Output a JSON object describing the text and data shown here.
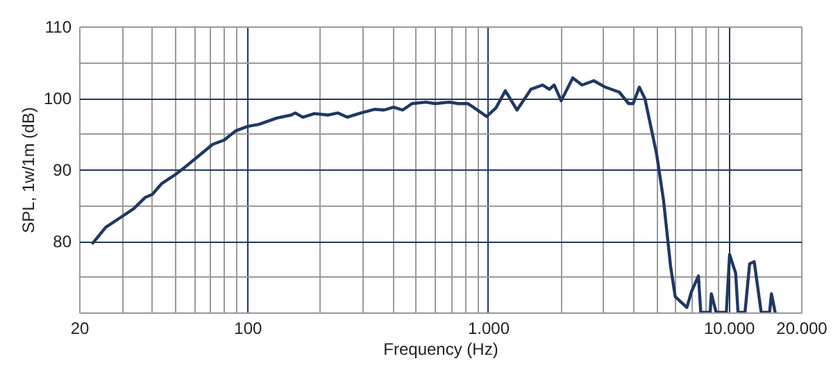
{
  "chart_data": {
    "type": "line",
    "xlabel": "Frequency (Hz)",
    "ylabel": "SPL, 1w/1m (dB)",
    "log": "x",
    "grid": true,
    "marker": "none",
    "line_style": "solid",
    "xlim": [
      20,
      20000
    ],
    "ylim": [
      70,
      110
    ],
    "xticks": [
      20,
      {
        "value": 30,
        "label": null
      },
      {
        "value": 40,
        "label": null
      },
      {
        "value": 50,
        "label": null
      },
      {
        "value": 60,
        "label": null
      },
      {
        "value": 70,
        "label": null
      },
      {
        "value": 80,
        "label": null
      },
      {
        "value": 90,
        "label": null
      },
      100,
      {
        "value": 200,
        "label": null
      },
      {
        "value": 300,
        "label": null
      },
      {
        "value": 400,
        "label": null
      },
      {
        "value": 500,
        "label": null
      },
      {
        "value": 600,
        "label": null
      },
      {
        "value": 700,
        "label": null
      },
      {
        "value": 800,
        "label": null
      },
      {
        "value": 900,
        "label": null
      },
      {
        "value": 1000,
        "label": "1.000"
      },
      {
        "value": 2000,
        "label": null
      },
      {
        "value": 3000,
        "label": null
      },
      {
        "value": 4000,
        "label": null
      },
      {
        "value": 5000,
        "label": null
      },
      {
        "value": 6000,
        "label": null
      },
      {
        "value": 7000,
        "label": null
      },
      {
        "value": 8000,
        "label": null
      },
      {
        "value": 9000,
        "label": null
      },
      {
        "value": 10000,
        "label": "10.000"
      },
      {
        "value": 20000,
        "label": "20.000"
      }
    ],
    "yticks": [
      {
        "value": 70,
        "label": null
      },
      {
        "value": 75,
        "label": null
      },
      80,
      {
        "value": 85,
        "label": null
      },
      90,
      {
        "value": 95,
        "label": null
      },
      100,
      {
        "value": 105,
        "label": null
      },
      110
    ],
    "series": [
      {
        "color": "#1f3864",
        "x": [
          22.8,
          25.8,
          29.5,
          33.7,
          37.7,
          40.3,
          44.0,
          50.3,
          55.0,
          62.8,
          71.7,
          80.1,
          89.5,
          100,
          111.7,
          133,
          152,
          158,
          170,
          190,
          217,
          238,
          260,
          297,
          339,
          370,
          405,
          442,
          483,
          552,
          603,
          689,
          753,
          823,
          860,
          987,
          1079,
          1180,
          1320,
          1507,
          1683,
          1800,
          1883,
          2014,
          2250,
          2460,
          2750,
          3073,
          3511,
          3840,
          4011,
          4253,
          4487,
          5016,
          5361,
          5733,
          5998,
          6702,
          7004,
          7489,
          7655,
          8375,
          8476,
          8875,
          9779,
          10090,
          10690,
          10935,
          11690,
          12220,
          12770,
          13650,
          14790,
          15060,
          15600
        ],
        "values": [
          79.7,
          81.9,
          83.2,
          84.5,
          86.1,
          86.5,
          88.0,
          89.3,
          90.3,
          91.9,
          93.5,
          94.1,
          95.4,
          96.0,
          96.3,
          97.2,
          97.6,
          97.9,
          97.3,
          97.8,
          97.6,
          97.9,
          97.3,
          97.9,
          98.4,
          98.3,
          98.7,
          98.3,
          99.2,
          99.4,
          99.2,
          99.4,
          99.2,
          99.2,
          98.8,
          97.4,
          98.6,
          101.0,
          98.3,
          101.2,
          101.8,
          101.2,
          101.8,
          99.6,
          102.8,
          101.8,
          102.4,
          101.5,
          100.8,
          99.2,
          99.2,
          101.5,
          99.9,
          92.2,
          85.7,
          76.5,
          72.2,
          70.7,
          72.9,
          75.1,
          70,
          70,
          72.6,
          70,
          70,
          78.1,
          75.5,
          70,
          70,
          76.8,
          77.1,
          70,
          70,
          72.6,
          70
        ]
      }
    ]
  }
}
